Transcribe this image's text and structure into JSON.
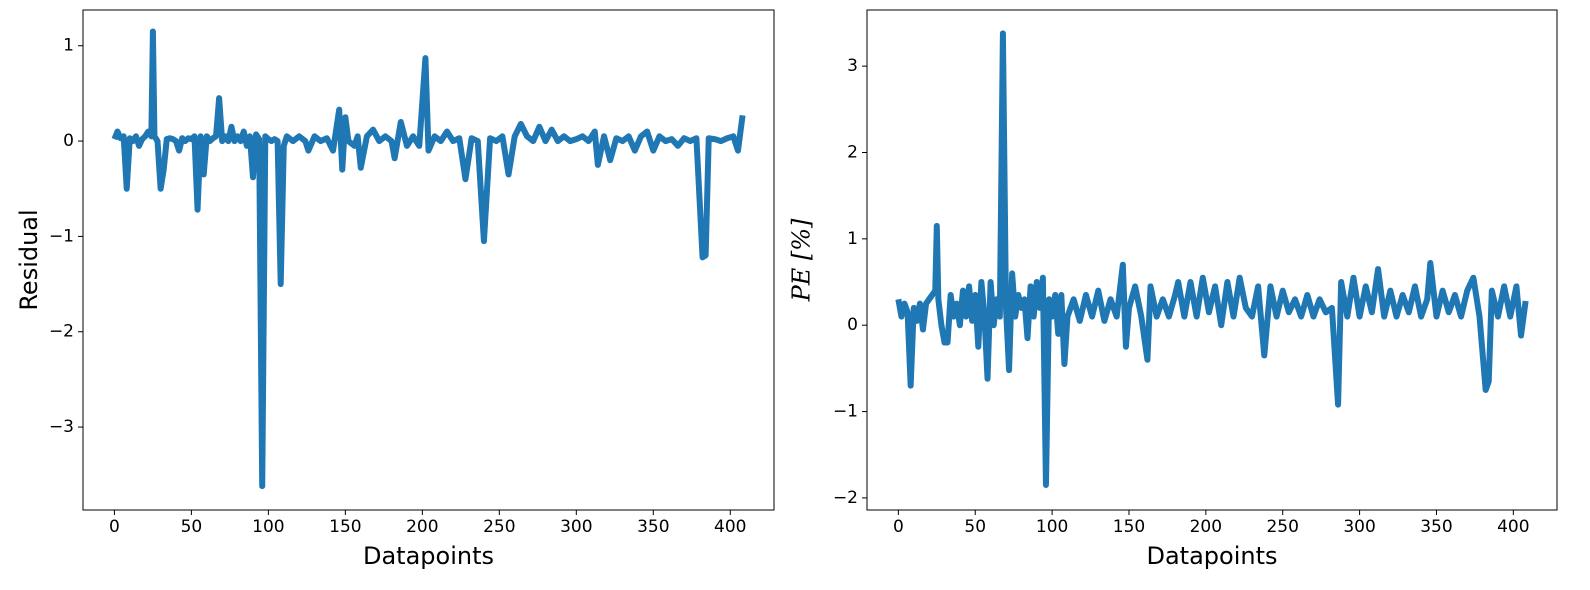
{
  "chart_data": [
    {
      "type": "line",
      "xlabel": "Datapoints",
      "ylabel": "Residual",
      "xlim": [
        -20.4,
        428.4
      ],
      "xticks": [
        0,
        50,
        100,
        150,
        200,
        250,
        300,
        350,
        400
      ],
      "ylim": [
        -3.87,
        1.375
      ],
      "yticks": [
        {
          "value": -3,
          "label": "−3"
        },
        {
          "value": -2,
          "label": "−2"
        },
        {
          "value": -1,
          "label": "−1"
        },
        0,
        1
      ],
      "series": [
        {
          "color": "#1f77b4",
          "x": [
            0,
            2,
            4,
            6,
            8,
            10,
            12,
            14,
            16,
            18,
            20,
            22,
            24,
            25,
            26,
            28,
            30,
            32,
            34,
            36,
            38,
            40,
            42,
            44,
            46,
            48,
            50,
            52,
            54,
            56,
            58,
            60,
            62,
            64,
            66,
            68,
            70,
            72,
            74,
            76,
            78,
            80,
            82,
            84,
            86,
            88,
            90,
            92,
            94,
            96,
            98,
            100,
            102,
            104,
            106,
            108,
            110,
            112,
            116,
            120,
            124,
            126,
            130,
            134,
            138,
            142,
            146,
            148,
            150,
            152,
            156,
            158,
            160,
            164,
            168,
            172,
            176,
            180,
            182,
            186,
            190,
            194,
            198,
            202,
            204,
            208,
            212,
            216,
            220,
            224,
            228,
            232,
            236,
            240,
            244,
            248,
            252,
            256,
            260,
            264,
            268,
            272,
            276,
            280,
            284,
            288,
            292,
            296,
            300,
            304,
            308,
            312,
            314,
            318,
            322,
            326,
            330,
            334,
            338,
            342,
            346,
            350,
            354,
            358,
            362,
            366,
            370,
            374,
            378,
            382,
            384,
            386,
            390,
            394,
            398,
            402,
            405,
            408
          ],
          "values": [
            0.02,
            0.1,
            0.03,
            0.05,
            -0.5,
            0.03,
            0.0,
            0.05,
            -0.05,
            0.02,
            0.05,
            0.1,
            0.05,
            1.15,
            0.05,
            0.0,
            -0.5,
            -0.3,
            0.02,
            0.03,
            0.02,
            0.0,
            -0.1,
            0.03,
            0.0,
            0.03,
            0.02,
            0.05,
            -0.72,
            0.05,
            -0.35,
            0.05,
            0.0,
            0.03,
            0.05,
            0.45,
            0.0,
            0.05,
            0.0,
            0.15,
            0.0,
            0.05,
            0.0,
            0.1,
            -0.05,
            0.05,
            -0.38,
            0.07,
            0.02,
            -3.62,
            0.05,
            0.02,
            0.0,
            0.02,
            0.0,
            -1.5,
            -0.05,
            0.05,
            0.0,
            0.05,
            0.0,
            -0.1,
            0.05,
            0.0,
            0.03,
            -0.1,
            0.33,
            -0.3,
            0.25,
            0.0,
            -0.05,
            0.05,
            -0.28,
            0.05,
            0.12,
            0.0,
            0.05,
            0.0,
            -0.18,
            0.2,
            -0.05,
            0.05,
            -0.05,
            0.87,
            -0.1,
            0.05,
            0.0,
            0.1,
            0.0,
            0.03,
            -0.4,
            0.03,
            0.0,
            -1.05,
            0.03,
            0.0,
            0.05,
            -0.35,
            0.05,
            0.18,
            0.05,
            0.0,
            0.15,
            0.0,
            0.12,
            0.0,
            0.05,
            0.0,
            0.02,
            0.05,
            0.0,
            0.1,
            -0.25,
            0.05,
            -0.2,
            0.03,
            0.0,
            0.05,
            -0.1,
            0.05,
            0.1,
            -0.1,
            0.05,
            0.0,
            0.02,
            -0.05,
            0.03,
            0.0,
            0.03,
            -1.22,
            -1.2,
            0.03,
            0.02,
            0.0,
            0.03,
            0.05,
            -0.1,
            0.27
          ]
        }
      ]
    },
    {
      "type": "line",
      "xlabel": "Datapoints",
      "ylabel": "PE [%]",
      "xlim": [
        -20.4,
        428.4
      ],
      "xticks": [
        0,
        50,
        100,
        150,
        200,
        250,
        300,
        350,
        400
      ],
      "ylim": [
        -2.14,
        3.65
      ],
      "yticks": [
        {
          "value": -2,
          "label": "−2"
        },
        {
          "value": -1,
          "label": "−1"
        },
        0,
        1,
        2,
        3
      ],
      "series": [
        {
          "color": "#1f77b4",
          "x": [
            0,
            2,
            4,
            6,
            8,
            10,
            12,
            14,
            16,
            18,
            20,
            22,
            24,
            25,
            26,
            28,
            30,
            32,
            34,
            36,
            38,
            40,
            42,
            44,
            46,
            48,
            50,
            52,
            54,
            56,
            58,
            60,
            62,
            64,
            66,
            68,
            70,
            72,
            74,
            76,
            78,
            80,
            82,
            84,
            86,
            88,
            90,
            92,
            94,
            96,
            98,
            100,
            102,
            104,
            106,
            108,
            110,
            114,
            118,
            122,
            126,
            130,
            134,
            138,
            142,
            146,
            148,
            150,
            154,
            158,
            162,
            164,
            168,
            172,
            176,
            180,
            182,
            186,
            190,
            194,
            198,
            202,
            206,
            210,
            214,
            218,
            222,
            226,
            230,
            234,
            238,
            242,
            246,
            250,
            254,
            258,
            262,
            266,
            270,
            274,
            278,
            282,
            286,
            288,
            292,
            296,
            300,
            304,
            308,
            312,
            316,
            320,
            324,
            328,
            332,
            336,
            340,
            344,
            346,
            350,
            354,
            358,
            362,
            366,
            370,
            374,
            378,
            382,
            384,
            386,
            390,
            394,
            398,
            402,
            405,
            408
          ],
          "values": [
            0.3,
            0.1,
            0.25,
            0.15,
            -0.7,
            0.2,
            0.05,
            0.25,
            -0.05,
            0.25,
            0.3,
            0.35,
            0.4,
            1.15,
            0.3,
            0.0,
            -0.2,
            -0.2,
            0.35,
            0.1,
            0.25,
            0.0,
            0.4,
            0.1,
            0.45,
            0.05,
            0.35,
            -0.25,
            0.5,
            0.1,
            -0.62,
            0.5,
            0.0,
            0.3,
            0.1,
            3.38,
            0.2,
            -0.52,
            0.6,
            0.1,
            0.35,
            0.2,
            0.3,
            -0.15,
            0.45,
            0.1,
            0.5,
            0.2,
            0.55,
            -1.85,
            0.3,
            0.1,
            0.35,
            -0.1,
            0.35,
            -0.45,
            0.1,
            0.3,
            0.05,
            0.35,
            0.1,
            0.4,
            0.05,
            0.3,
            0.1,
            0.7,
            -0.25,
            0.2,
            0.45,
            0.1,
            -0.4,
            0.45,
            0.1,
            0.3,
            0.1,
            0.35,
            0.5,
            0.1,
            0.5,
            0.1,
            0.55,
            0.15,
            0.45,
            0.0,
            0.5,
            0.1,
            0.55,
            0.2,
            0.1,
            0.45,
            -0.35,
            0.45,
            0.1,
            0.4,
            0.15,
            0.3,
            0.1,
            0.35,
            0.1,
            0.3,
            0.15,
            0.2,
            -0.92,
            0.5,
            0.1,
            0.55,
            0.1,
            0.45,
            0.15,
            0.65,
            0.1,
            0.4,
            0.1,
            0.35,
            0.15,
            0.45,
            0.1,
            0.3,
            0.72,
            0.1,
            0.4,
            0.15,
            0.35,
            0.1,
            0.4,
            0.55,
            0.1,
            -0.75,
            -0.65,
            0.4,
            0.1,
            0.45,
            0.1,
            0.45,
            -0.12,
            0.28
          ]
        }
      ]
    }
  ]
}
